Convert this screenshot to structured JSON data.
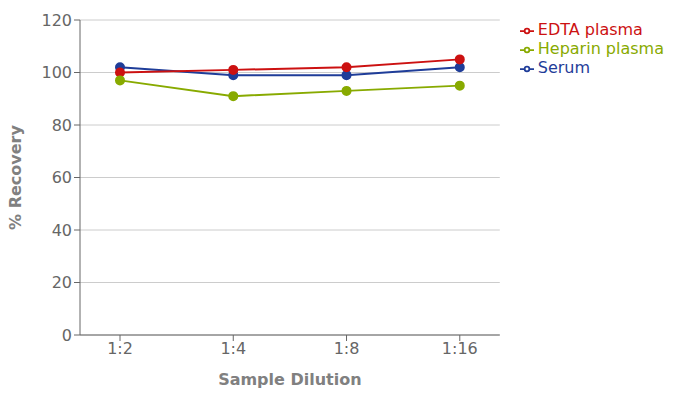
{
  "chart_data": {
    "type": "line",
    "xlabel": "Sample Dilution",
    "ylabel": "% Recovery",
    "categories": [
      "1:2",
      "1:4",
      "1:8",
      "1:16"
    ],
    "series": [
      {
        "name": "Serum",
        "color": "#1f3d99",
        "values": [
          102,
          99,
          99,
          102
        ],
        "marker": "circle"
      },
      {
        "name": "EDTA plasma",
        "color": "#cc1111",
        "values": [
          100,
          101,
          102,
          105
        ],
        "marker": "circle"
      },
      {
        "name": "Heparin plasma",
        "color": "#88aa00",
        "values": [
          97,
          91,
          93,
          95
        ],
        "marker": "circle"
      }
    ],
    "ylim": [
      0,
      120
    ],
    "yticks": [
      0,
      20,
      40,
      60,
      80,
      100,
      120
    ],
    "grid": true,
    "legend": "right"
  }
}
